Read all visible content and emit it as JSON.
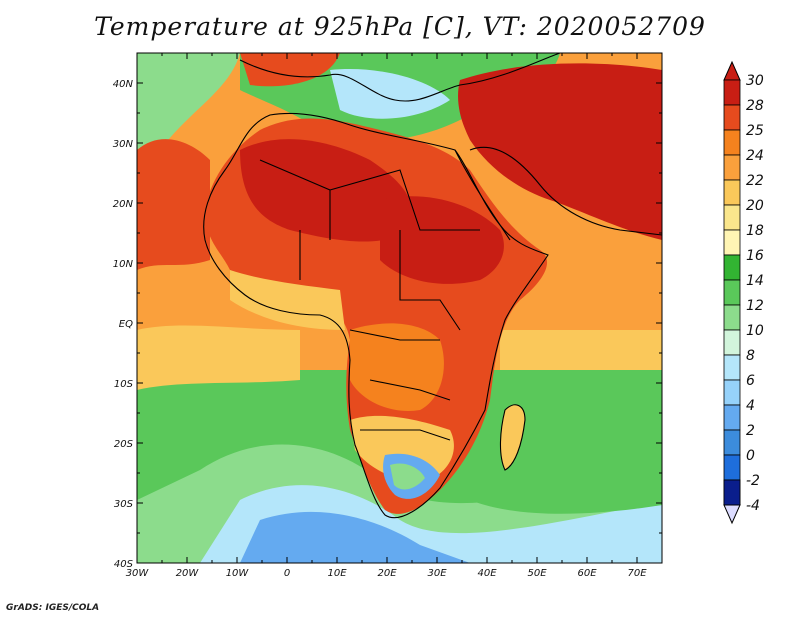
{
  "title": "Temperature at 925hPa [C], VT: 2020052709",
  "credit": "GrADS: IGES/COLA",
  "map": {
    "lon_range": [
      -30,
      75
    ],
    "lat_range": [
      -40,
      45
    ],
    "lat_ticks": [
      "40N",
      "30N",
      "20N",
      "10N",
      "EQ",
      "10S",
      "20S",
      "30S",
      "40S"
    ],
    "lon_ticks": [
      "30W",
      "20W",
      "10W",
      "0",
      "10E",
      "20E",
      "30E",
      "40E",
      "50E",
      "60E",
      "70E"
    ]
  },
  "colorbar": {
    "levels": [
      "30",
      "28",
      "25",
      "24",
      "22",
      "20",
      "18",
      "16",
      "14",
      "12",
      "10",
      "8",
      "6",
      "4",
      "2",
      "0",
      "-2",
      "-4"
    ],
    "colors": [
      "#c81e14",
      "#e64b1e",
      "#f5821e",
      "#faa03c",
      "#fac85a",
      "#fae68c",
      "#fff5b4",
      "#32b432",
      "#5ac85a",
      "#8cdc8c",
      "#d2f5dc",
      "#b4e6fa",
      "#96d2fa",
      "#64aaf0",
      "#3c8cdc",
      "#1e6edc",
      "#1450b4",
      "#0a1e8c"
    ],
    "tip_top": "#c81e14",
    "tip_bottom": "#dcdcff"
  }
}
